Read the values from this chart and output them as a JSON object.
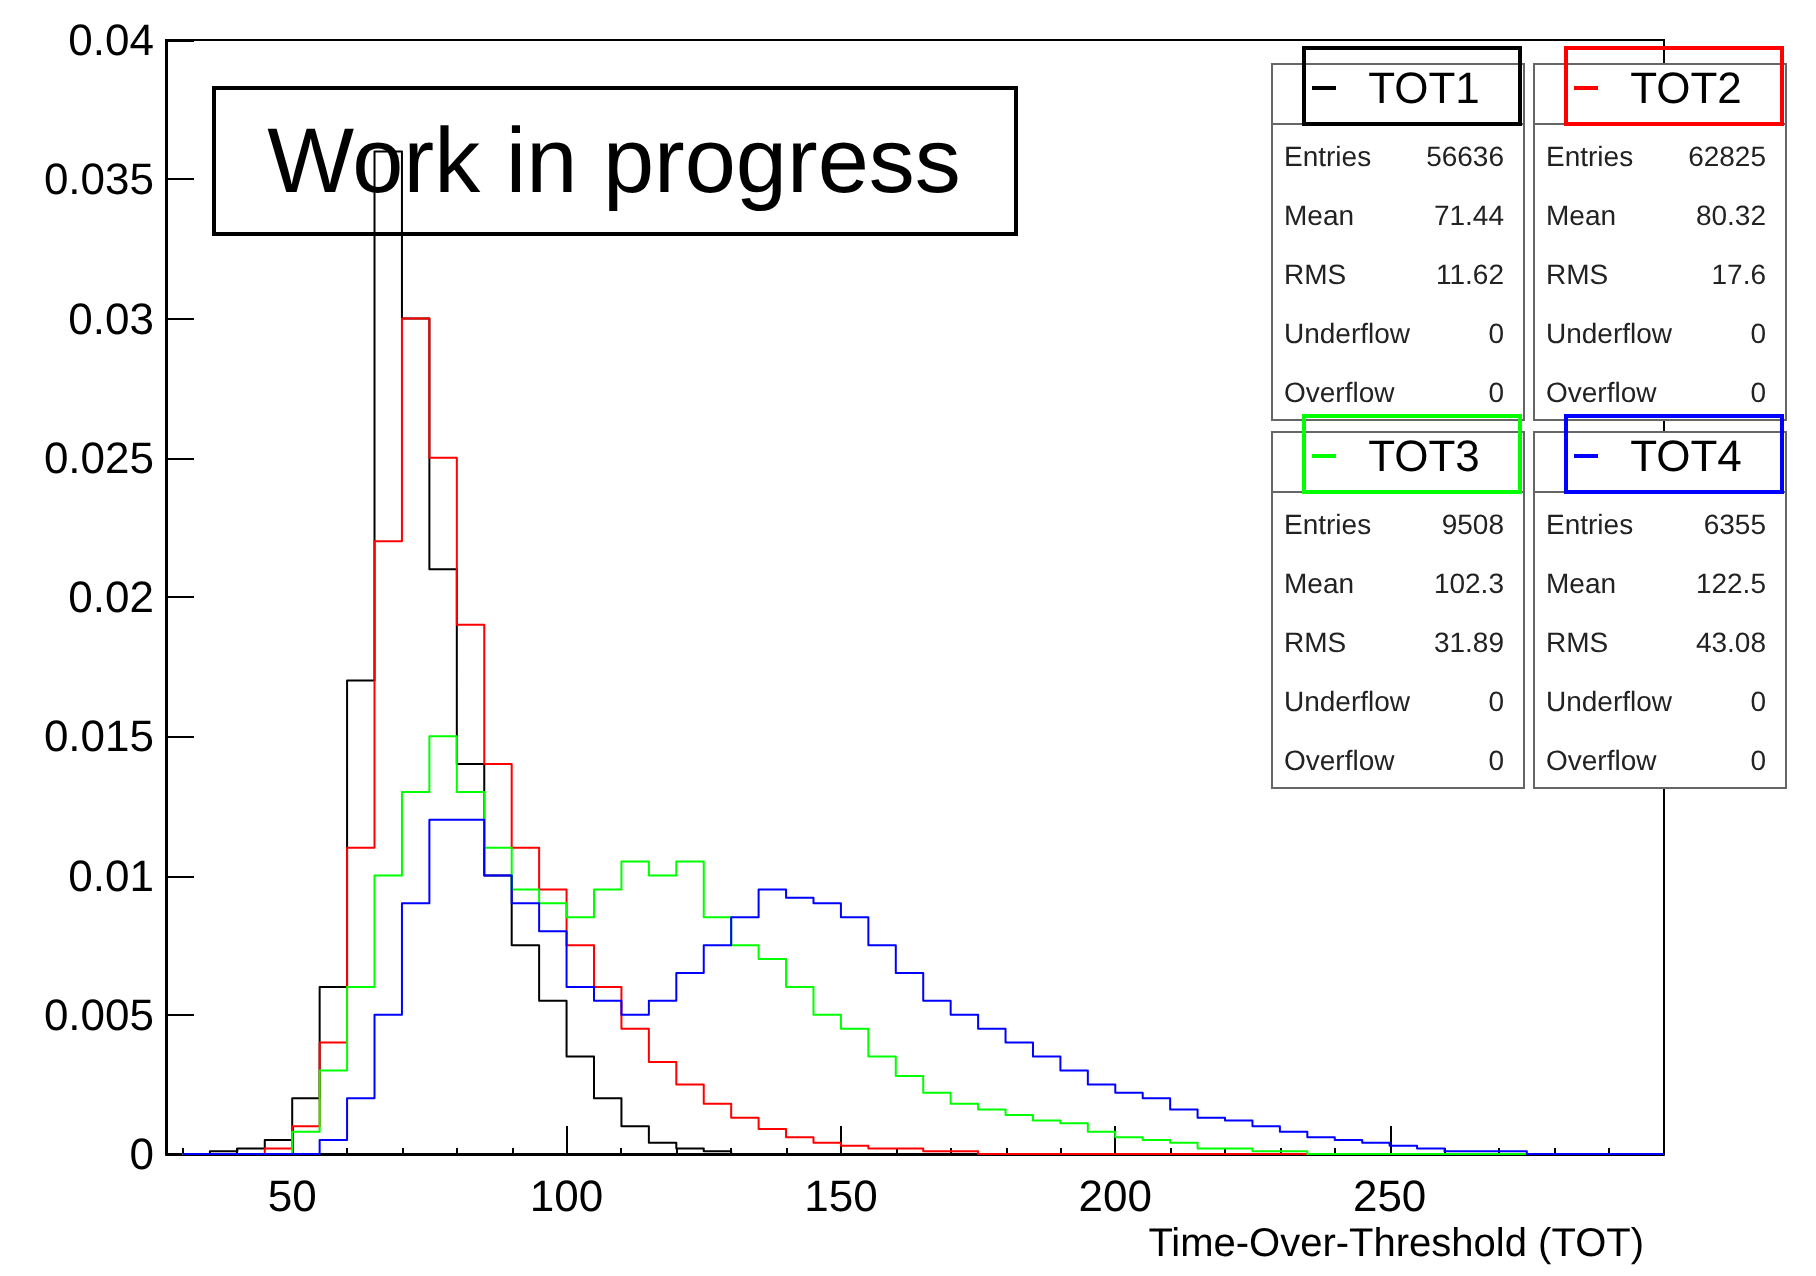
{
  "chart_data": {
    "type": "histogram",
    "xlabel": "Time-Over-Threshold (TOT)",
    "bins": [
      30,
      35,
      40,
      45,
      50,
      55,
      60,
      65,
      70,
      75,
      80,
      85,
      90,
      95,
      100,
      105,
      110,
      115,
      120,
      125,
      130,
      135,
      140,
      145,
      150,
      155,
      160,
      165,
      170,
      175,
      180,
      185,
      190,
      195,
      200,
      205,
      210,
      215,
      220,
      225,
      230,
      235,
      240,
      245,
      250,
      255,
      260,
      265,
      270,
      275,
      280,
      285,
      290,
      295,
      300
    ],
    "series": [
      {
        "name": "TOT1",
        "color": "#000000",
        "values": [
          0,
          0.0001,
          0.0002,
          0.0005,
          0.002,
          0.006,
          0.017,
          0.036,
          0.03,
          0.021,
          0.014,
          0.01,
          0.0075,
          0.0055,
          0.0035,
          0.002,
          0.001,
          0.0004,
          0.0002,
          0.0001,
          0,
          0,
          0,
          0,
          0,
          0,
          0,
          0,
          0,
          0,
          0,
          0,
          0,
          0,
          0,
          0,
          0,
          0,
          0,
          0,
          0,
          0,
          0,
          0,
          0,
          0,
          0,
          0,
          0,
          0,
          0,
          0,
          0,
          0
        ]
      },
      {
        "name": "TOT2",
        "color": "#ff0000",
        "values": [
          0,
          0,
          0,
          0.0002,
          0.001,
          0.004,
          0.011,
          0.022,
          0.03,
          0.025,
          0.019,
          0.014,
          0.011,
          0.0095,
          0.0075,
          0.006,
          0.0045,
          0.0033,
          0.0025,
          0.0018,
          0.0013,
          0.0009,
          0.0006,
          0.0004,
          0.0003,
          0.0002,
          0.0002,
          0.0001,
          0.0001,
          0,
          0,
          0,
          0,
          0,
          0,
          0,
          0,
          0,
          0,
          0,
          0,
          0,
          0,
          0,
          0,
          0,
          0,
          0,
          0,
          0,
          0,
          0,
          0,
          0
        ]
      },
      {
        "name": "TOT3",
        "color": "#00ff00",
        "values": [
          0,
          0,
          0,
          0,
          0.0008,
          0.003,
          0.006,
          0.01,
          0.013,
          0.015,
          0.013,
          0.011,
          0.0095,
          0.009,
          0.0085,
          0.0095,
          0.0105,
          0.01,
          0.0105,
          0.0085,
          0.0075,
          0.007,
          0.006,
          0.005,
          0.0045,
          0.0035,
          0.0028,
          0.0022,
          0.0018,
          0.0016,
          0.0014,
          0.0012,
          0.0011,
          0.0008,
          0.0006,
          0.0005,
          0.0004,
          0.0002,
          0.0002,
          0.0001,
          0.0001,
          0,
          0,
          0,
          0,
          0,
          0,
          0,
          0,
          0,
          0,
          0,
          0,
          0
        ]
      },
      {
        "name": "TOT4",
        "color": "#0000ff",
        "values": [
          0,
          0,
          0,
          0,
          0,
          0.0005,
          0.002,
          0.005,
          0.009,
          0.012,
          0.012,
          0.01,
          0.009,
          0.008,
          0.006,
          0.0055,
          0.005,
          0.0055,
          0.0065,
          0.0075,
          0.0085,
          0.0095,
          0.0092,
          0.009,
          0.0085,
          0.0075,
          0.0065,
          0.0055,
          0.005,
          0.0045,
          0.004,
          0.0035,
          0.003,
          0.0025,
          0.0022,
          0.002,
          0.0016,
          0.0013,
          0.0012,
          0.001,
          0.0008,
          0.0006,
          0.0005,
          0.0004,
          0.0003,
          0.0002,
          0.0001,
          0.0001,
          0.0001,
          0,
          0,
          0,
          0,
          0
        ]
      }
    ],
    "xlim": [
      27,
      300
    ],
    "xticks": [
      50,
      100,
      150,
      200,
      250
    ],
    "ylim": [
      0,
      0.04
    ],
    "yticks": [
      0,
      0.005,
      0.01,
      0.015,
      0.02,
      0.025,
      0.03,
      0.035,
      0.04
    ],
    "grid": false,
    "legend": "top right",
    "annotations": [
      "Work in progress",
      "Entries",
      "56636",
      "Mean",
      "71.44",
      "RMS",
      "11.62",
      "Underflow",
      "0",
      "Overflow",
      "0",
      "Entries",
      "62825",
      "Mean",
      "80.32",
      "RMS",
      "17.6",
      "Underflow",
      "0",
      "Overflow",
      "0",
      "Entries",
      "9508",
      "Mean",
      "102.3",
      "RMS",
      "31.89",
      "Underflow",
      "0",
      "Overflow",
      "0",
      "Entries",
      "6355",
      "Mean",
      "122.5",
      "RMS",
      "43.08",
      "Underflow",
      "0",
      "Overflow",
      "0"
    ]
  }
}
